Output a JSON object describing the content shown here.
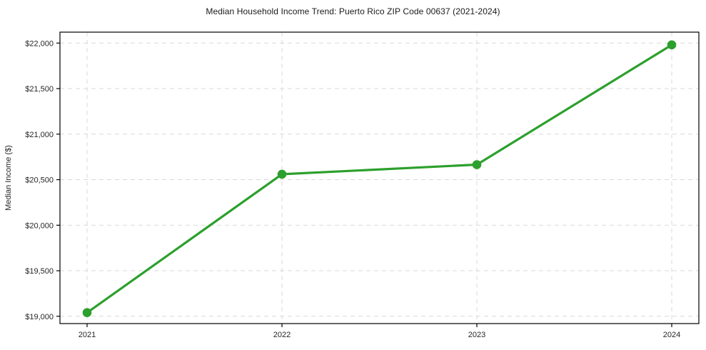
{
  "chart_data": {
    "type": "line",
    "title": "Median Household Income Trend: Puerto Rico ZIP Code 00637 (2021-2024)",
    "xlabel": "",
    "ylabel": "Median Income ($)",
    "categories": [
      "2021",
      "2022",
      "2023",
      "2024"
    ],
    "series": [
      {
        "name": "Median Household Income",
        "values": [
          19040,
          20560,
          20665,
          21980
        ]
      }
    ],
    "ylim": [
      18920,
      22120
    ],
    "y_ticks": [
      19000,
      19500,
      20000,
      20500,
      21000,
      21500,
      22000
    ],
    "y_tick_labels": [
      "$19,000",
      "$19,500",
      "$20,000",
      "$20,500",
      "$21,000",
      "$21,500",
      "$22,000"
    ],
    "grid": true,
    "grid_style": "dashed",
    "legend": "none",
    "colors": {
      "line": "#2ca02c",
      "marker": "#2ca02c",
      "grid": "#d9d9d9",
      "axis": "#000000",
      "tick_text": "#262626",
      "background": "#ffffff"
    }
  }
}
